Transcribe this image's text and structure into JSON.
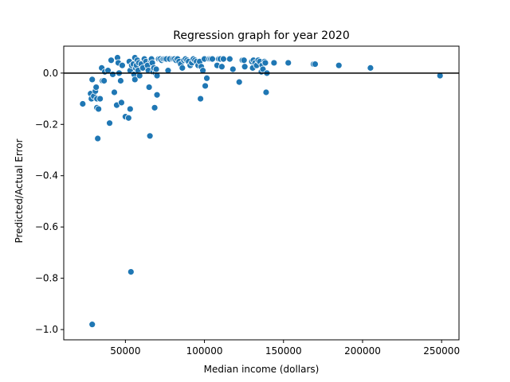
{
  "chart_data": {
    "type": "scatter",
    "title": "Regression graph for year 2020",
    "xlabel": "Median income (dollars)",
    "ylabel": "Predicted/Actual Error",
    "xlim": [
      11000,
      261000
    ],
    "ylim": [
      -1.04,
      0.105
    ],
    "xticks": [
      50000,
      100000,
      150000,
      200000,
      250000
    ],
    "yticks": [
      0.0,
      -0.2,
      -0.4,
      -0.6,
      -0.8,
      -1.0
    ],
    "xtick_labels": [
      "50000",
      "100000",
      "150000",
      "200000",
      "250000"
    ],
    "ytick_labels": [
      "0.0",
      "−0.2",
      "−0.4",
      "−0.6",
      "−0.8",
      "−1.0"
    ],
    "reference_line_y": 0,
    "grid": false,
    "marker_color": "#1f77b4",
    "points": [
      [
        23000,
        -0.12
      ],
      [
        28000,
        -0.08
      ],
      [
        28500,
        -0.1
      ],
      [
        29000,
        -0.025
      ],
      [
        29000,
        -0.98
      ],
      [
        30000,
        -0.09
      ],
      [
        31000,
        -0.07
      ],
      [
        31500,
        -0.055
      ],
      [
        32000,
        -0.135
      ],
      [
        32000,
        -0.1
      ],
      [
        32500,
        -0.255
      ],
      [
        33000,
        -0.14
      ],
      [
        34000,
        -0.1
      ],
      [
        35000,
        0.02
      ],
      [
        35500,
        -0.03
      ],
      [
        36500,
        -0.03
      ],
      [
        37000,
        0.005
      ],
      [
        39000,
        0.01
      ],
      [
        40000,
        -0.195
      ],
      [
        41000,
        0.05
      ],
      [
        42000,
        -0.005
      ],
      [
        43000,
        -0.075
      ],
      [
        44500,
        -0.125
      ],
      [
        45000,
        0.06
      ],
      [
        45500,
        0.04
      ],
      [
        46000,
        0.0
      ],
      [
        47000,
        -0.03
      ],
      [
        47500,
        -0.115
      ],
      [
        48000,
        0.03
      ],
      [
        50000,
        -0.17
      ],
      [
        52000,
        -0.175
      ],
      [
        52500,
        0.045
      ],
      [
        53000,
        0.01
      ],
      [
        53000,
        -0.14
      ],
      [
        53500,
        -0.775
      ],
      [
        54000,
        0.03
      ],
      [
        55000,
        0.035
      ],
      [
        55500,
        -0.005
      ],
      [
        56000,
        0.06
      ],
      [
        56000,
        -0.025
      ],
      [
        56500,
        0.02
      ],
      [
        57000,
        0.03
      ],
      [
        57500,
        0.05
      ],
      [
        58000,
        0.01
      ],
      [
        58500,
        0.04
      ],
      [
        59000,
        -0.01
      ],
      [
        60000,
        0.035
      ],
      [
        61000,
        0.02
      ],
      [
        62000,
        0.055
      ],
      [
        63000,
        0.045
      ],
      [
        64000,
        0.03
      ],
      [
        64500,
        0.01
      ],
      [
        65000,
        -0.055
      ],
      [
        65500,
        -0.245
      ],
      [
        66000,
        0.05
      ],
      [
        66500,
        0.055
      ],
      [
        67000,
        0.04
      ],
      [
        67500,
        0.005
      ],
      [
        68000,
        0.02
      ],
      [
        68500,
        -0.135
      ],
      [
        69000,
        0.0
      ],
      [
        69500,
        0.015
      ],
      [
        70000,
        -0.01
      ],
      [
        70000,
        -0.085
      ],
      [
        71000,
        0.055
      ],
      [
        72000,
        0.055
      ],
      [
        73000,
        0.05
      ],
      [
        74000,
        0.055
      ],
      [
        75000,
        0.055
      ],
      [
        76000,
        0.055
      ],
      [
        77000,
        0.01
      ],
      [
        78000,
        0.055
      ],
      [
        80000,
        0.055
      ],
      [
        81000,
        0.055
      ],
      [
        82000,
        0.05
      ],
      [
        83000,
        0.055
      ],
      [
        84000,
        0.045
      ],
      [
        85000,
        0.035
      ],
      [
        86000,
        0.02
      ],
      [
        87000,
        0.05
      ],
      [
        88000,
        0.055
      ],
      [
        89000,
        0.05
      ],
      [
        90000,
        0.045
      ],
      [
        91000,
        0.03
      ],
      [
        92000,
        0.04
      ],
      [
        93000,
        0.055
      ],
      [
        94000,
        0.05
      ],
      [
        95000,
        0.045
      ],
      [
        96000,
        0.03
      ],
      [
        97000,
        0.045
      ],
      [
        97500,
        -0.1
      ],
      [
        98000,
        0.025
      ],
      [
        99000,
        0.01
      ],
      [
        100000,
        0.055
      ],
      [
        100500,
        -0.05
      ],
      [
        101500,
        -0.02
      ],
      [
        103000,
        0.055
      ],
      [
        104000,
        0.055
      ],
      [
        105000,
        0.055
      ],
      [
        108000,
        0.03
      ],
      [
        109000,
        0.055
      ],
      [
        110000,
        0.055
      ],
      [
        111000,
        0.025
      ],
      [
        112000,
        0.055
      ],
      [
        116000,
        0.055
      ],
      [
        118000,
        0.015
      ],
      [
        122000,
        -0.035
      ],
      [
        124000,
        0.05
      ],
      [
        125000,
        0.05
      ],
      [
        125500,
        0.025
      ],
      [
        130000,
        0.045
      ],
      [
        130500,
        0.02
      ],
      [
        131000,
        0.05
      ],
      [
        132000,
        0.04
      ],
      [
        133000,
        0.03
      ],
      [
        134000,
        0.05
      ],
      [
        135000,
        0.045
      ],
      [
        136000,
        0.005
      ],
      [
        136500,
        0.03
      ],
      [
        137000,
        0.015
      ],
      [
        138000,
        0.045
      ],
      [
        138500,
        0.04
      ],
      [
        139000,
        -0.075
      ],
      [
        139500,
        0.0
      ],
      [
        144000,
        0.04
      ],
      [
        153000,
        0.04
      ],
      [
        169000,
        0.035
      ],
      [
        170000,
        0.035
      ],
      [
        185000,
        0.03
      ],
      [
        205000,
        0.02
      ],
      [
        249000,
        -0.01
      ]
    ]
  }
}
